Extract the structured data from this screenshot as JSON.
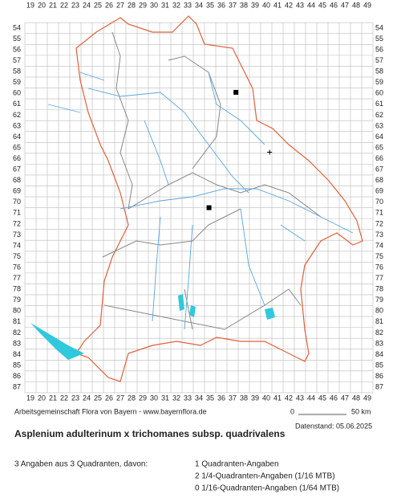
{
  "map": {
    "columns": [
      19,
      20,
      21,
      22,
      23,
      24,
      25,
      26,
      27,
      28,
      29,
      30,
      31,
      32,
      33,
      34,
      35,
      36,
      37,
      38,
      39,
      40,
      41,
      42,
      43,
      44,
      45,
      46,
      47,
      48,
      49
    ],
    "rows": [
      54,
      55,
      56,
      57,
      58,
      59,
      60,
      61,
      62,
      63,
      64,
      65,
      66,
      67,
      68,
      69,
      70,
      71,
      72,
      73,
      74,
      75,
      76,
      77,
      78,
      79,
      80,
      81,
      82,
      83,
      84,
      85,
      86,
      87
    ],
    "markers": [
      {
        "kind": "square",
        "x": 37.3,
        "y": 59.9
      },
      {
        "kind": "square",
        "x": 34.9,
        "y": 70.5
      },
      {
        "kind": "plus",
        "x": 40.3,
        "y": 65.4
      }
    ],
    "credit": "Arbeitsgemeinschaft Flora von Bayern - www.bayernflora.de",
    "scale_start": "0",
    "scale_end": "50 km",
    "date": "Datenstand: 05.06.2025",
    "title": "Asplenium adulterinum x trichomanes subsp. quadrivalens",
    "summary": "3 Angaben aus 3 Quadranten, davon:",
    "counts": [
      "1 Quadranten-Angaben",
      "2 1/4-Quadranten-Angaben (1/16 MTB)",
      "0 1/16-Quadranten-Angaben (1/64 MTB)"
    ]
  }
}
